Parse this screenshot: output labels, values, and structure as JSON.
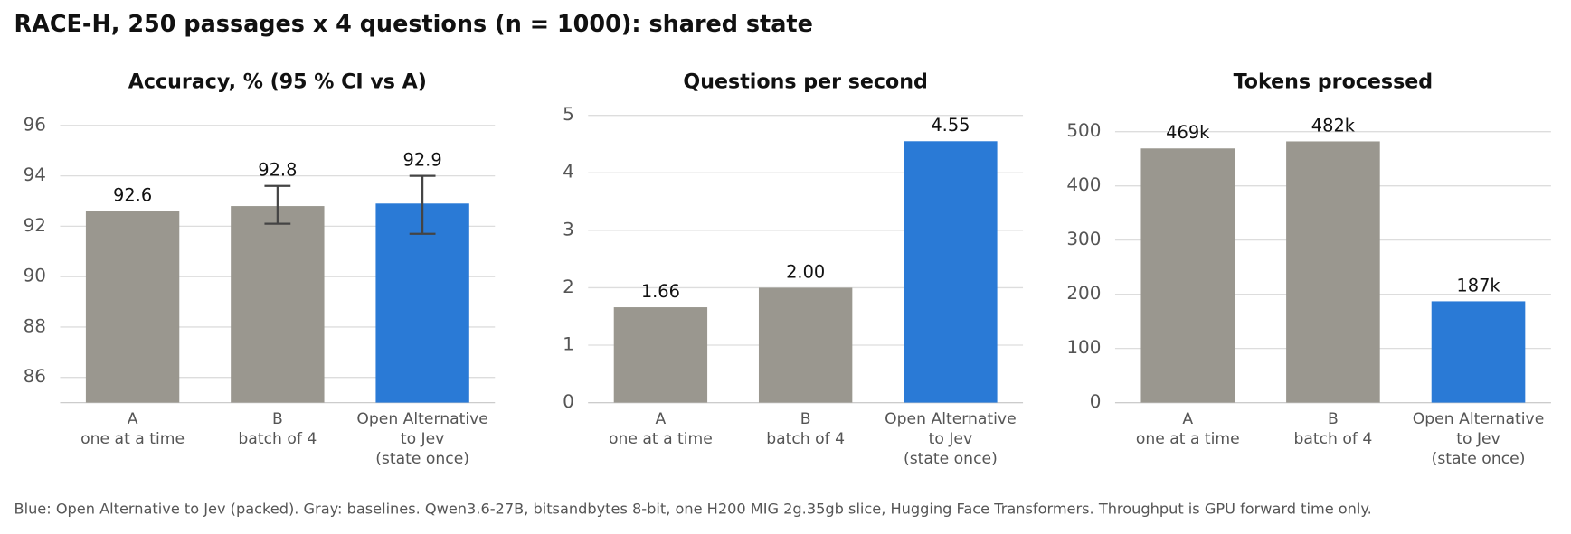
{
  "title": "RACE-H, 250 passages x 4 questions (n = 1000): shared state",
  "note": "Blue: Open Alternative to Jev (packed). Gray: baselines. Qwen3.6-27B, bitsandbytes 8-bit, one H200 MIG 2g.35gb slice, Hugging Face Transformers. Throughput is GPU forward time only.",
  "chart_data": [
    {
      "type": "bar",
      "title": "Accuracy, % (95 % CI vs A)",
      "categories": [
        "A\none at a time",
        "B\nbatch of 4",
        "Open Alternative\nto Jev\n(state once)"
      ],
      "values": [
        92.6,
        92.8,
        92.9
      ],
      "ci": [
        null,
        [
          92.1,
          93.6
        ],
        [
          91.7,
          94.0
        ]
      ],
      "colors": [
        "#9a978f",
        "#9a978f",
        "#2a7ad6"
      ],
      "ylim": [
        85,
        96.4
      ],
      "yticks": [
        86,
        88,
        90,
        92,
        94,
        96
      ],
      "grid": true
    },
    {
      "type": "bar",
      "title": "Questions per second",
      "categories": [
        "A\none at a time",
        "B\nbatch of 4",
        "Open Alternative\nto Jev\n(state once)"
      ],
      "values": [
        1.66,
        2.0,
        4.55
      ],
      "value_labels": [
        "1.66",
        "2.00",
        "4.55"
      ],
      "colors": [
        "#9a978f",
        "#9a978f",
        "#2a7ad6"
      ],
      "ylim": [
        0,
        5
      ],
      "yticks": [
        0,
        1,
        2,
        3,
        4,
        5
      ],
      "grid": true
    },
    {
      "type": "bar",
      "title": "Tokens processed",
      "categories": [
        "A\none at a time",
        "B\nbatch of 4",
        "Open Alternative\nto Jev\n(state once)"
      ],
      "values": [
        469,
        482,
        187
      ],
      "value_labels": [
        "469k",
        "482k",
        "187k"
      ],
      "colors": [
        "#9a978f",
        "#9a978f",
        "#2a7ad6"
      ],
      "ylim": [
        0,
        530
      ],
      "yticks": [
        0,
        100,
        200,
        300,
        400,
        500
      ],
      "grid": true
    }
  ]
}
